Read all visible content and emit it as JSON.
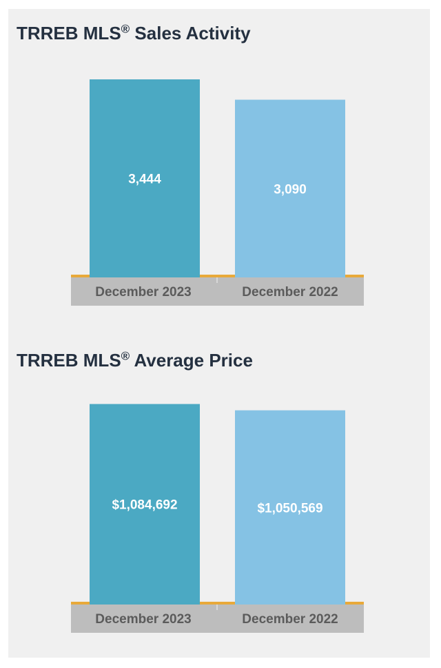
{
  "colors": {
    "panel": "#f0f0f0",
    "title": "#243040",
    "bar_current": "#4ba9c3",
    "bar_previous": "#85c2e4",
    "value_label": "#ffffff",
    "axis_band": "#bdbdbd",
    "axis_label": "#5b5b5b",
    "baseline": "#e8a93a"
  },
  "chart_data": [
    {
      "type": "bar",
      "title": "TRREB MLS",
      "title_mark": "®",
      "title_suffix": " Sales Activity",
      "categories": [
        "December 2023",
        "December 2022"
      ],
      "values": [
        3444,
        3090
      ],
      "value_labels": [
        "3,444",
        "3,090"
      ],
      "ylim": [
        0,
        3600
      ],
      "grid": false,
      "legend": "none"
    },
    {
      "type": "bar",
      "title": "TRREB MLS",
      "title_mark": "®",
      "title_suffix": " Average Price",
      "categories": [
        "December 2023",
        "December 2022"
      ],
      "values": [
        1084692,
        1050569
      ],
      "value_labels": [
        "$1,084,692",
        "$1,050,569"
      ],
      "ylim": [
        0,
        1120000
      ],
      "grid": false,
      "legend": "none"
    }
  ]
}
